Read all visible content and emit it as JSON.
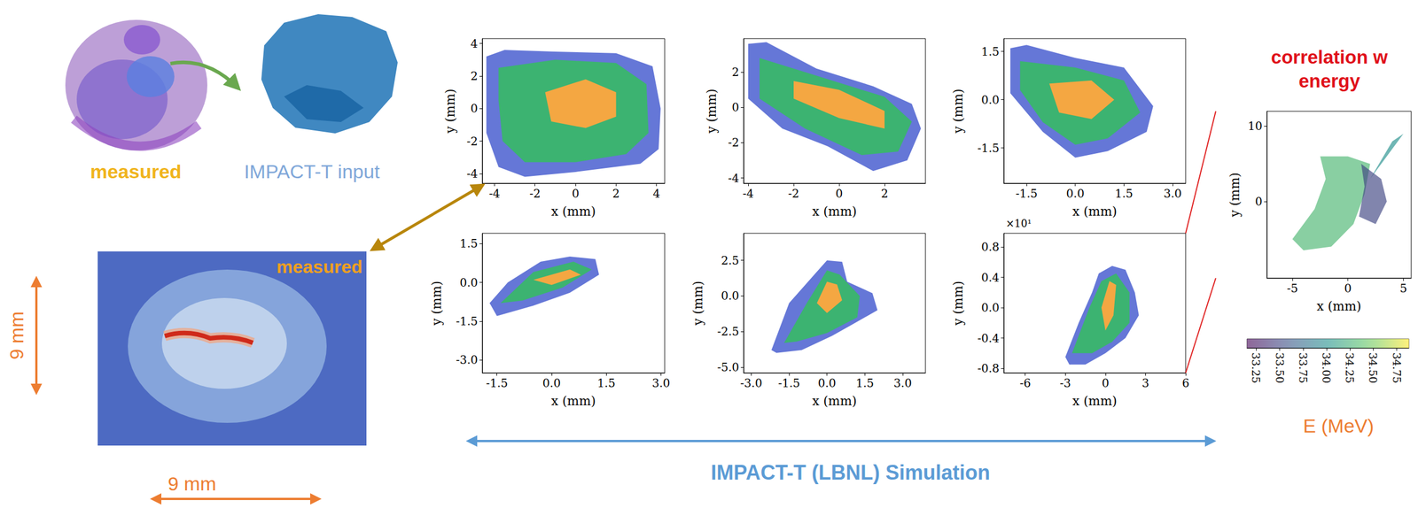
{
  "top_left": {
    "measured_label": "measured",
    "input_label": "IMPACT-T input"
  },
  "bottom_left": {
    "label": "measured",
    "height_label": "9 mm",
    "width_label": "9 mm"
  },
  "simulation_label": "IMPACT-T (LBNL) Simulation",
  "chart_data": [
    {
      "type": "polygon",
      "x_label": "x (mm)",
      "y_label": "y (mm)",
      "grid": false,
      "xlim": [
        -4.6,
        4.4
      ],
      "xticks": [
        -4,
        -2,
        0,
        2,
        4
      ],
      "ylim": [
        -4.6,
        4.3
      ],
      "yticks": [
        -4,
        -2,
        0,
        2,
        4
      ],
      "series": [
        {
          "color": "#4a5fd0",
          "values": [
            [
              -4.4,
              3.2
            ],
            [
              -3.5,
              3.6
            ],
            [
              -1,
              3.5
            ],
            [
              2,
              3.4
            ],
            [
              3.8,
              2.6
            ],
            [
              4.2,
              0
            ],
            [
              4.1,
              -2.5
            ],
            [
              3.2,
              -3.4
            ],
            [
              0,
              -3.9
            ],
            [
              -2.5,
              -4.2
            ],
            [
              -3.8,
              -3.6
            ],
            [
              -4.4,
              -1.5
            ],
            [
              -4.4,
              1.5
            ]
          ]
        },
        {
          "color": "#3cb371",
          "values": [
            [
              -3.8,
              2.5
            ],
            [
              -1,
              3
            ],
            [
              2,
              2.8
            ],
            [
              3.5,
              1.5
            ],
            [
              3.6,
              -1.5
            ],
            [
              2.5,
              -2.8
            ],
            [
              0,
              -3.3
            ],
            [
              -2.5,
              -3.3
            ],
            [
              -3.6,
              -2
            ],
            [
              -3.8,
              0.5
            ]
          ]
        },
        {
          "color": "#f4a742",
          "values": [
            [
              -1.5,
              1
            ],
            [
              0.5,
              1.8
            ],
            [
              2,
              1
            ],
            [
              2,
              -0.5
            ],
            [
              0.5,
              -1.2
            ],
            [
              -1.2,
              -0.8
            ]
          ]
        }
      ]
    },
    {
      "type": "polygon",
      "x_label": "x (mm)",
      "y_label": "y (mm)",
      "grid": false,
      "xlim": [
        -4.2,
        3.8
      ],
      "xticks": [
        -4,
        -2,
        0,
        2
      ],
      "ylim": [
        -4.3,
        3.9
      ],
      "yticks": [
        -4,
        -2,
        0,
        2
      ],
      "series": [
        {
          "color": "#4a5fd0",
          "values": [
            [
              -4,
              3.6
            ],
            [
              -3.2,
              3.7
            ],
            [
              -1,
              2.2
            ],
            [
              1.5,
              1.2
            ],
            [
              3.2,
              0.2
            ],
            [
              3.6,
              -1.2
            ],
            [
              3,
              -3
            ],
            [
              1.5,
              -3.6
            ],
            [
              -0.5,
              -2.2
            ],
            [
              -2.5,
              -1.2
            ],
            [
              -4,
              0.5
            ]
          ]
        },
        {
          "color": "#3cb371",
          "values": [
            [
              -3.5,
              2.8
            ],
            [
              -1,
              1.8
            ],
            [
              2,
              0.6
            ],
            [
              3.2,
              -0.8
            ],
            [
              2.6,
              -2.5
            ],
            [
              1,
              -2.7
            ],
            [
              -1.5,
              -1.2
            ],
            [
              -3.5,
              0.5
            ]
          ]
        },
        {
          "color": "#f4a742",
          "values": [
            [
              -2,
              1.5
            ],
            [
              0,
              1
            ],
            [
              2,
              -0.2
            ],
            [
              2,
              -1.2
            ],
            [
              0,
              -0.6
            ],
            [
              -2,
              0.5
            ]
          ]
        }
      ]
    },
    {
      "type": "polygon",
      "x_label": "x (mm)",
      "y_label": "y (mm)",
      "grid": false,
      "xlim": [
        -2.2,
        3.4
      ],
      "xticks": [
        -1.5,
        {
          "value": 0,
          "label": "0.0"
        },
        1.5,
        {
          "value": 3,
          "label": "3.0"
        }
      ],
      "ylim": [
        -2.6,
        1.9
      ],
      "yticks": [
        -1.5,
        {
          "value": 0,
          "label": "0.0"
        },
        1.5
      ],
      "series": [
        {
          "color": "#4a5fd0",
          "values": [
            [
              -2,
              1.6
            ],
            [
              -1.5,
              1.7
            ],
            [
              0,
              1.3
            ],
            [
              1.5,
              1
            ],
            [
              2.4,
              -0.2
            ],
            [
              2.2,
              -1
            ],
            [
              1,
              -1.6
            ],
            [
              0,
              -1.8
            ],
            [
              -1,
              -1
            ],
            [
              -2,
              0.2
            ]
          ]
        },
        {
          "color": "#3cb371",
          "values": [
            [
              -1.7,
              1.2
            ],
            [
              0,
              1
            ],
            [
              1.5,
              0.6
            ],
            [
              2,
              -0.4
            ],
            [
              1,
              -1.2
            ],
            [
              0,
              -1.4
            ],
            [
              -1,
              -0.7
            ],
            [
              -1.7,
              0.3
            ]
          ]
        },
        {
          "color": "#f4a742",
          "values": [
            [
              -0.8,
              0.5
            ],
            [
              0.5,
              0.6
            ],
            [
              1.2,
              0
            ],
            [
              0.5,
              -0.6
            ],
            [
              -0.5,
              -0.4
            ]
          ]
        }
      ]
    },
    {
      "type": "polygon",
      "x_label": "x (mm)",
      "y_label": "y (mm)",
      "grid": false,
      "xlim": [
        -1.9,
        3.1
      ],
      "xticks": [
        -1.5,
        {
          "value": 0,
          "label": "0.0"
        },
        1.5,
        {
          "value": 3,
          "label": "3.0"
        }
      ],
      "ylim": [
        -3.5,
        1.9
      ],
      "yticks": [
        {
          "value": -3,
          "label": "-3.0"
        },
        -1.5,
        {
          "value": 0,
          "label": "0.0"
        },
        1.5
      ],
      "series": [
        {
          "color": "#4a5fd0",
          "values": [
            [
              -1.7,
              -0.8
            ],
            [
              -1.2,
              0
            ],
            [
              -0.3,
              0.8
            ],
            [
              0.5,
              1
            ],
            [
              1.2,
              0.9
            ],
            [
              1.3,
              0.3
            ],
            [
              0.5,
              -0.4
            ],
            [
              -0.5,
              -0.9
            ],
            [
              -1.5,
              -1.3
            ]
          ]
        },
        {
          "color": "#3cb371",
          "values": [
            [
              -1.4,
              -0.8
            ],
            [
              -0.5,
              0.4
            ],
            [
              0.6,
              0.8
            ],
            [
              1.1,
              0.5
            ],
            [
              0.3,
              -0.2
            ],
            [
              -0.8,
              -0.7
            ]
          ]
        },
        {
          "color": "#f4a742",
          "values": [
            [
              -0.5,
              0.1
            ],
            [
              0.5,
              0.5
            ],
            [
              0.8,
              0.3
            ],
            [
              0,
              -0.1
            ]
          ]
        }
      ]
    },
    {
      "type": "polygon",
      "x_label": "x (mm)",
      "y_label": "y (mm)",
      "grid": false,
      "xlim": [
        -3.3,
        3.9
      ],
      "xticks": [
        {
          "value": -3,
          "label": "-3.0"
        },
        -1.5,
        {
          "value": 0,
          "label": "0.0"
        },
        1.5,
        {
          "value": 3,
          "label": "3.0"
        }
      ],
      "ylim": [
        -5.4,
        4.4
      ],
      "yticks": [
        {
          "value": -5,
          "label": "-5.0"
        },
        -2.5,
        {
          "value": 0,
          "label": "0.0"
        },
        2.5
      ],
      "series": [
        {
          "color": "#4a5fd0",
          "values": [
            [
              -2.2,
              -3.8
            ],
            [
              -1.5,
              -0.5
            ],
            [
              -0.5,
              1.5
            ],
            [
              0,
              2.5
            ],
            [
              0.6,
              2.4
            ],
            [
              0.8,
              1
            ],
            [
              1.8,
              0.2
            ],
            [
              2,
              -1
            ],
            [
              1,
              -2
            ],
            [
              0.2,
              -2.8
            ],
            [
              -1,
              -3.8
            ],
            [
              -2,
              -4
            ]
          ]
        },
        {
          "color": "#3cb371",
          "values": [
            [
              -1.7,
              -3.3
            ],
            [
              -0.8,
              -0.5
            ],
            [
              0,
              1.8
            ],
            [
              0.5,
              1.5
            ],
            [
              1.3,
              0
            ],
            [
              1.2,
              -1.5
            ],
            [
              0,
              -2.6
            ],
            [
              -1.2,
              -3.2
            ]
          ]
        },
        {
          "color": "#f4a742",
          "values": [
            [
              -0.4,
              -0.5
            ],
            [
              0,
              1
            ],
            [
              0.4,
              0.8
            ],
            [
              0.6,
              -0.3
            ],
            [
              0,
              -1.2
            ]
          ]
        }
      ]
    },
    {
      "type": "polygon",
      "x_label": "x (mm)",
      "y_label": "y (mm)",
      "grid": false,
      "annotation": "×10¹",
      "xlim": [
        -7.6,
        6
      ],
      "xticks": [
        -6,
        -3,
        0,
        3,
        6
      ],
      "ylim": [
        -0.86,
        0.98
      ],
      "yticks": [
        -0.8,
        -0.4,
        {
          "value": 0,
          "label": "0.0"
        },
        0.4,
        0.8
      ],
      "series": [
        {
          "color": "#4a5fd0",
          "values": [
            [
              -3,
              -0.65
            ],
            [
              -2,
              -0.2
            ],
            [
              -1,
              0.2
            ],
            [
              -0.5,
              0.45
            ],
            [
              0.5,
              0.55
            ],
            [
              1.5,
              0.5
            ],
            [
              2.2,
              0.2
            ],
            [
              2.5,
              -0.1
            ],
            [
              1.5,
              -0.4
            ],
            [
              0,
              -0.6
            ],
            [
              -1.5,
              -0.75
            ],
            [
              -2.7,
              -0.75
            ]
          ]
        },
        {
          "color": "#3cb371",
          "values": [
            [
              -2.5,
              -0.6
            ],
            [
              -1.2,
              0
            ],
            [
              -0.3,
              0.35
            ],
            [
              0.8,
              0.45
            ],
            [
              1.8,
              0.2
            ],
            [
              1.8,
              -0.2
            ],
            [
              0.5,
              -0.45
            ],
            [
              -1,
              -0.6
            ]
          ]
        },
        {
          "color": "#f4a742",
          "values": [
            [
              -0.3,
              0
            ],
            [
              0.3,
              0.35
            ],
            [
              0.8,
              0.3
            ],
            [
              0.6,
              -0.1
            ],
            [
              0,
              -0.3
            ]
          ]
        }
      ]
    },
    {
      "type": "polygon",
      "title": "correlation w energy",
      "x_label": "x (mm)",
      "y_label": "y (mm)",
      "grid": false,
      "xlim": [
        -7.3,
        5.7
      ],
      "xticks": [
        -5,
        0,
        5
      ],
      "ylim": [
        -10.2,
        12
      ],
      "yticks": [
        0,
        10
      ],
      "series": [
        {
          "energy": 34.3,
          "values": [
            [
              -5,
              -5
            ],
            [
              -3,
              -1
            ],
            [
              -2,
              3
            ],
            [
              -2.5,
              6
            ],
            [
              0,
              6
            ],
            [
              2,
              5
            ],
            [
              1.5,
              1
            ],
            [
              0.5,
              -3
            ],
            [
              -1.5,
              -6
            ],
            [
              -4,
              -6.5
            ]
          ]
        },
        {
          "energy": 34.0,
          "values": [
            [
              2,
              3
            ],
            [
              4,
              8
            ],
            [
              5,
              9
            ],
            [
              3,
              5
            ]
          ]
        },
        {
          "energy": 33.5,
          "values": [
            [
              1,
              -2
            ],
            [
              1.5,
              2
            ],
            [
              1.2,
              5
            ],
            [
              3,
              3
            ],
            [
              3.5,
              0
            ],
            [
              2.5,
              -3
            ]
          ]
        }
      ],
      "colorbar": {
        "label": "E (MeV)",
        "lim": [
          33.15,
          34.88
        ],
        "ticks": [
          33.25,
          {
            "value": 33.5,
            "label": "33.50"
          },
          33.75,
          {
            "value": 34,
            "label": "34.00"
          },
          34.25,
          {
            "value": 34.5,
            "label": "34.50"
          },
          34.75
        ]
      }
    }
  ]
}
